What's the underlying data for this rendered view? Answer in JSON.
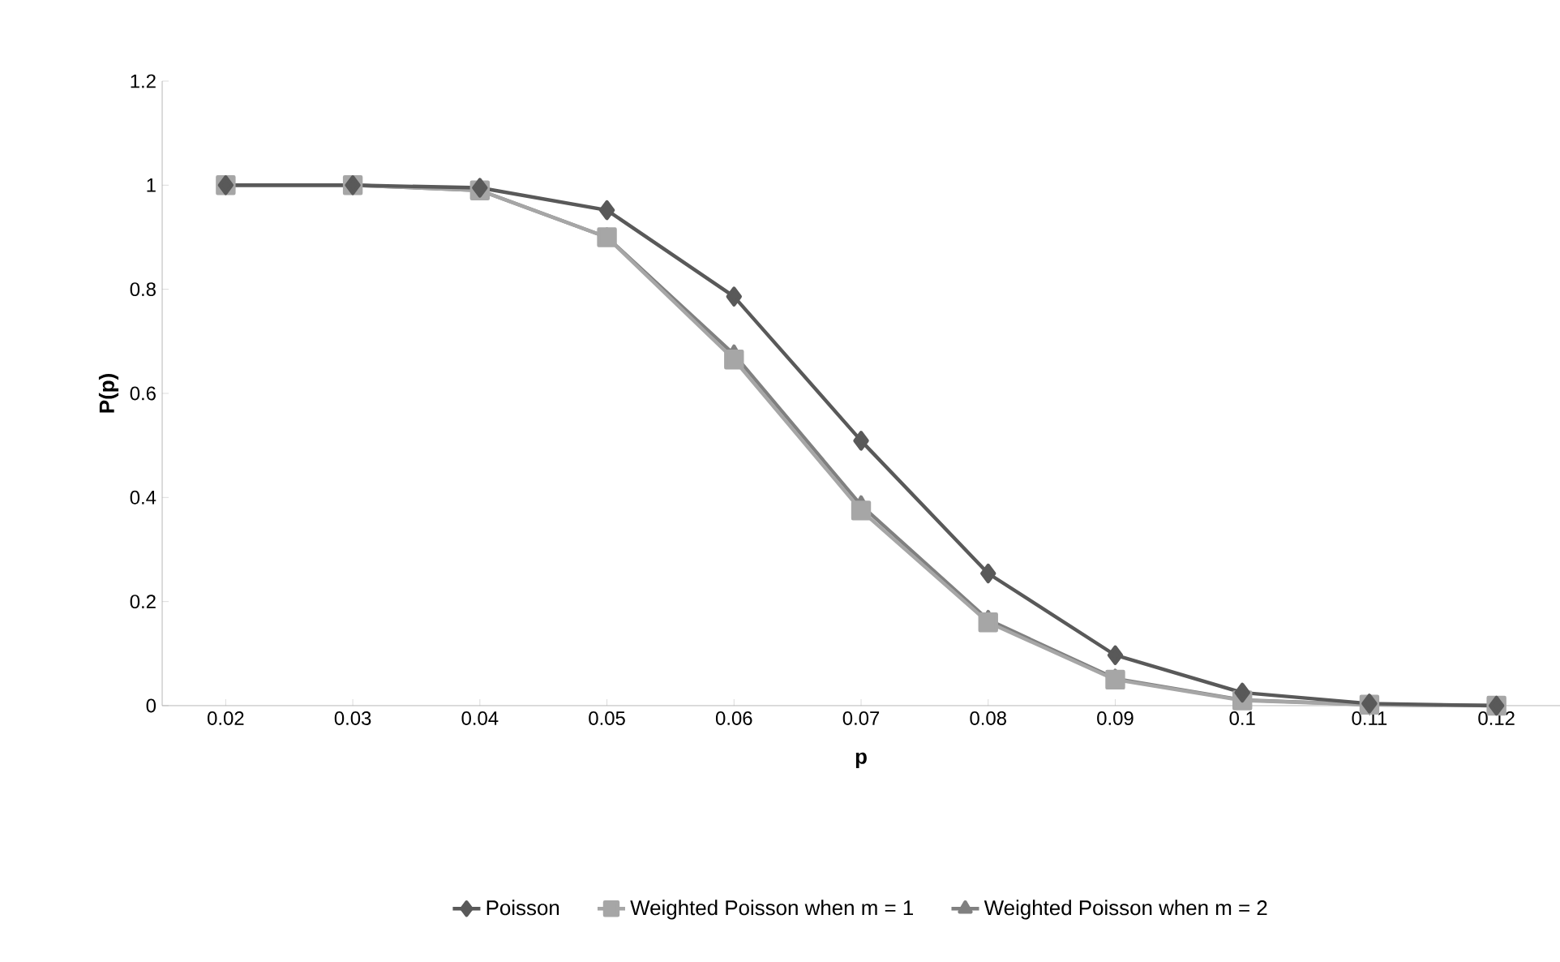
{
  "chart_data": {
    "type": "line",
    "xlabel": "p",
    "ylabel": "P(p)",
    "categories": [
      "0.02",
      "0.03",
      "0.04",
      "0.05",
      "0.06",
      "0.07",
      "0.08",
      "0.09",
      "0.1",
      "0.11",
      "0.12"
    ],
    "series": [
      {
        "name": "Poisson",
        "color": "#595959",
        "marker": "diamond",
        "values": [
          1,
          1,
          0.995,
          0.952,
          0.786,
          0.509,
          0.254,
          0.097,
          0.025,
          0.004,
          0
        ]
      },
      {
        "name": "Weighted Poisson when m = 1",
        "color": "#a6a6a6",
        "marker": "square",
        "values": [
          1,
          1,
          0.99,
          0.9,
          0.665,
          0.375,
          0.16,
          0.05,
          0.01,
          0.002,
          0
        ]
      },
      {
        "name": "Weighted Poisson when m = 2",
        "color": "#808080",
        "marker": "triangle",
        "values": [
          1,
          1,
          0.99,
          0.9,
          0.675,
          0.385,
          0.165,
          0.052,
          0.011,
          0.002,
          0
        ]
      }
    ],
    "ylim": [
      0,
      1.2
    ],
    "yticks": [
      0,
      0.2,
      0.4,
      0.6,
      0.8,
      1,
      1.2
    ],
    "grid": false,
    "legend": "bottom"
  }
}
